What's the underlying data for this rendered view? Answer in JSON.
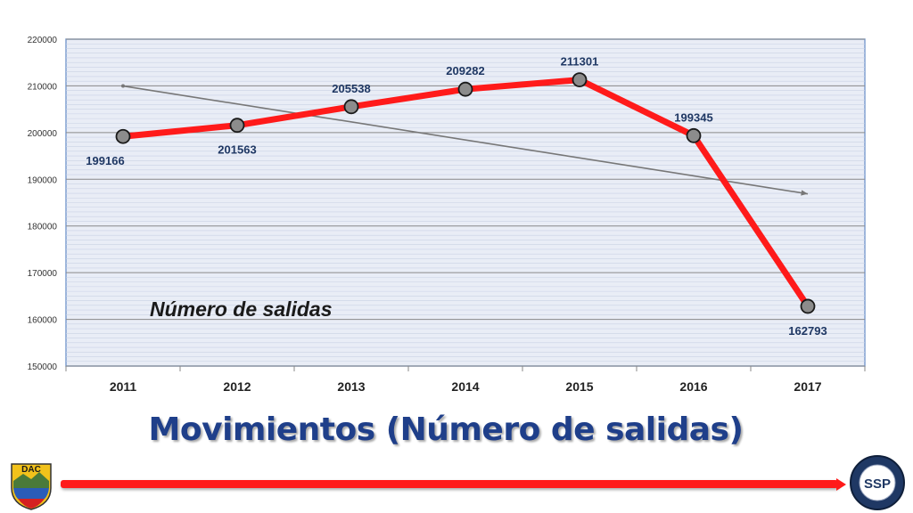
{
  "slide": {
    "title": "Movimientos (Número de salidas)",
    "left_logo_text": "DAC",
    "right_logo_text": "SSP",
    "right_logo_ring_text": "PROGRAMA DE SEGURIDAD OPERACIONAL"
  },
  "chart_data": {
    "type": "line",
    "title": "",
    "series_label": "Número de salidas",
    "xlabel": "",
    "ylabel": "",
    "categories": [
      "2011",
      "2012",
      "2013",
      "2014",
      "2015",
      "2016",
      "2017"
    ],
    "series": [
      {
        "name": "Número de salidas",
        "values": [
          199166,
          201563,
          205538,
          209282,
          211301,
          199345,
          162793
        ],
        "data_labels": [
          "199166",
          "201563",
          "205538",
          "209282",
          "211301",
          "199345",
          "162793"
        ],
        "color": "#ff1a1a",
        "marker_color": "#8c8c8c"
      }
    ],
    "trendline": {
      "type": "linear",
      "color": "#777777"
    },
    "ylim": [
      150000,
      220000
    ],
    "ytick_values": [
      150000,
      160000,
      170000,
      180000,
      190000,
      200000,
      210000,
      220000
    ],
    "ytick_labels": [
      "150000",
      "160000",
      "170000",
      "180000",
      "190000",
      "200000",
      "210000",
      "220000"
    ],
    "grid": true,
    "legend": "none",
    "plot_background": "#e9edf6"
  }
}
